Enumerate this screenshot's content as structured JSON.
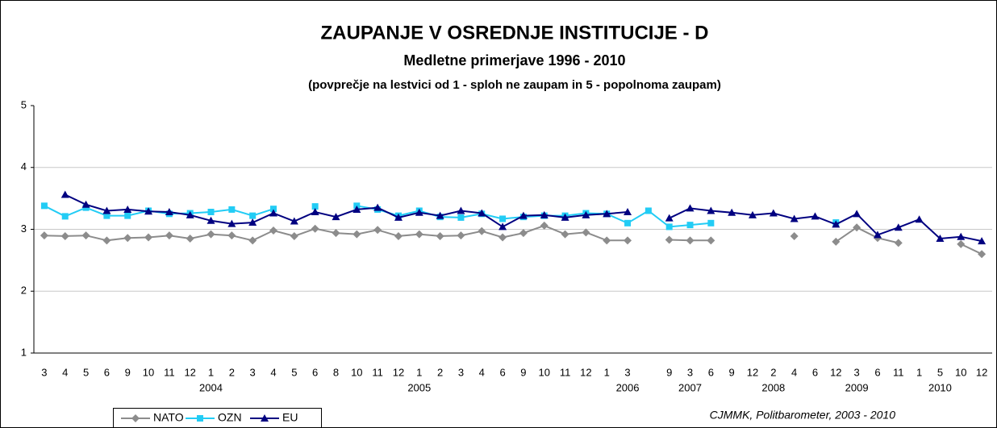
{
  "chart_data": {
    "type": "line",
    "title": "ZAUPANJE V OSREDNJE INSTITUCIJE - D",
    "subtitle": "Medletne primerjave 1996 - 2010",
    "subtitle2": "(povprečje na lestvici od 1 - sploh ne zaupam in 5 - popolnoma zaupam)",
    "source": "CJMMK, Politbarometer, 2003 - 2010",
    "categories": [
      "3",
      "4",
      "5",
      "6",
      "9",
      "10",
      "11",
      "12",
      "1",
      "2",
      "3",
      "4",
      "5",
      "6",
      "8",
      "10",
      "11",
      "12",
      "1",
      "2",
      "3",
      "4",
      "6",
      "9",
      "10",
      "11",
      "12",
      "1",
      "3",
      null,
      "9",
      "3",
      "6",
      "9",
      "12",
      "2",
      "4",
      "6",
      "12",
      "3",
      "6",
      "11",
      "1",
      "5",
      "10",
      "12"
    ],
    "category_groups": [
      null,
      null,
      null,
      null,
      null,
      null,
      null,
      null,
      "2004",
      null,
      null,
      null,
      null,
      null,
      null,
      null,
      null,
      null,
      "2005",
      null,
      null,
      null,
      null,
      null,
      null,
      null,
      null,
      null,
      "2006",
      null,
      null,
      "2007",
      null,
      null,
      null,
      "2008",
      null,
      null,
      null,
      "2009",
      null,
      null,
      null,
      "2010",
      null,
      null
    ],
    "series": [
      {
        "name": "NATO",
        "color": "#8c8c8c",
        "marker": "diamond",
        "values": [
          2.9,
          2.89,
          2.9,
          2.82,
          2.86,
          2.87,
          2.9,
          2.85,
          2.92,
          2.9,
          2.82,
          2.98,
          2.89,
          3.01,
          2.94,
          2.92,
          2.99,
          2.89,
          2.92,
          2.89,
          2.9,
          2.97,
          2.87,
          2.94,
          3.06,
          2.92,
          2.95,
          2.82,
          2.82,
          null,
          2.83,
          2.82,
          2.82,
          null,
          null,
          null,
          2.89,
          null,
          2.8,
          3.03,
          2.86,
          2.78,
          null,
          null,
          2.76,
          2.6
        ]
      },
      {
        "name": "OZN",
        "color": "#22ccf5",
        "marker": "square",
        "values": [
          3.38,
          3.21,
          3.35,
          3.22,
          3.22,
          3.3,
          3.25,
          3.26,
          3.28,
          3.32,
          3.22,
          3.33,
          null,
          3.37,
          null,
          3.38,
          3.32,
          3.22,
          3.3,
          3.2,
          3.19,
          3.25,
          3.17,
          3.2,
          3.22,
          3.22,
          3.26,
          3.25,
          3.1,
          3.3,
          3.04,
          3.07,
          3.1,
          null,
          null,
          null,
          null,
          null,
          3.11,
          null,
          null,
          null,
          null,
          null,
          null,
          null
        ]
      },
      {
        "name": "EU",
        "color": "#000080",
        "marker": "triangle",
        "values": [
          null,
          3.56,
          3.4,
          3.3,
          3.32,
          3.29,
          3.28,
          3.23,
          3.14,
          3.09,
          3.11,
          3.26,
          3.13,
          3.28,
          3.2,
          3.32,
          3.35,
          3.19,
          3.27,
          3.22,
          3.3,
          3.26,
          3.04,
          3.22,
          3.23,
          3.19,
          3.23,
          3.25,
          3.28,
          null,
          3.18,
          3.34,
          3.3,
          3.27,
          3.23,
          3.26,
          3.17,
          3.21,
          3.08,
          3.25,
          2.91,
          3.03,
          3.16,
          2.85,
          2.88,
          2.81
        ]
      }
    ],
    "ylim": [
      1,
      5
    ],
    "yticks": [
      1,
      2,
      3,
      4,
      5
    ],
    "grid": true
  }
}
